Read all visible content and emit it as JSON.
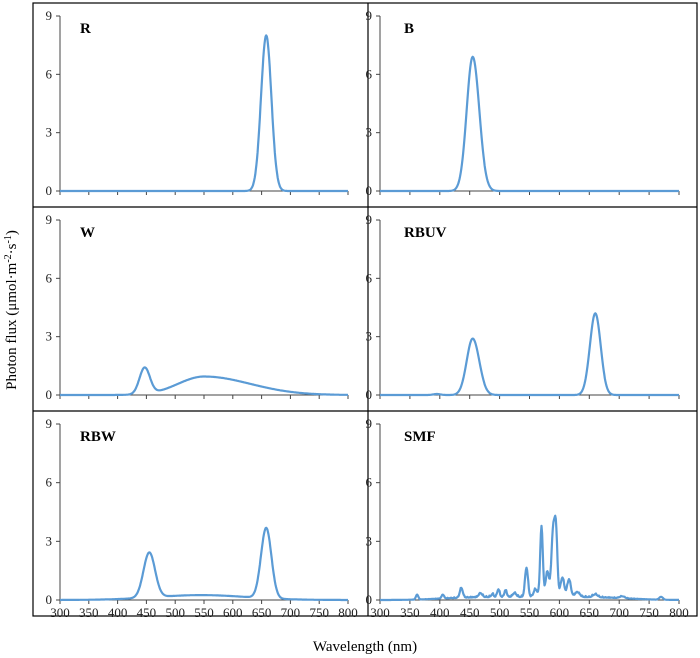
{
  "chart_data": {
    "type": "line",
    "title": "",
    "xlabel": "Wavelength  (nm)",
    "ylabel_parts": [
      "Photon flux  (μmol·m",
      "-2",
      "·s",
      "-1",
      ")"
    ],
    "xlim": [
      300,
      800
    ],
    "ylim": [
      0,
      9
    ],
    "xticks": [
      "300",
      "350",
      "400",
      "450",
      "500",
      "550",
      "600",
      "650",
      "700",
      "750",
      "800"
    ],
    "yticks": [
      "0",
      "3",
      "6",
      "9"
    ],
    "line_color": "#5b9bd5",
    "panels": [
      {
        "label": "R",
        "peaks": [
          [
            658,
            8.0,
            9,
            9
          ]
        ],
        "baseline": 0.0,
        "noise": 0
      },
      {
        "label": "B",
        "peaks": [
          [
            455,
            6.9,
            10,
            11
          ]
        ],
        "baseline": 0.0,
        "noise": 0
      },
      {
        "label": "W",
        "peaks": [
          [
            447,
            1.35,
            9,
            9
          ],
          [
            550,
            0.95,
            45,
            80
          ]
        ],
        "baseline": 0.0,
        "noise": 0
      },
      {
        "label": "RBUV",
        "peaks": [
          [
            395,
            0.05,
            6,
            6
          ],
          [
            455,
            2.9,
            10,
            11
          ],
          [
            660,
            4.2,
            9,
            9
          ]
        ],
        "baseline": 0.0,
        "noise": 0
      },
      {
        "label": "RBW",
        "peaks": [
          [
            455,
            2.3,
            10,
            10
          ],
          [
            545,
            0.25,
            80,
            80
          ],
          [
            658,
            3.6,
            9,
            9
          ]
        ],
        "baseline": 0.0,
        "noise": 0
      },
      {
        "label": "SMF",
        "peaks": [
          [
            362,
            0.25,
            2,
            2
          ],
          [
            405,
            0.2,
            2,
            2
          ],
          [
            436,
            0.5,
            2.5,
            2.5
          ],
          [
            468,
            0.2,
            3,
            3
          ],
          [
            488,
            0.15,
            2,
            2
          ],
          [
            498,
            0.4,
            2,
            2
          ],
          [
            510,
            0.35,
            2,
            2
          ],
          [
            525,
            0.2,
            3,
            3
          ],
          [
            545,
            1.5,
            2.5,
            2.5
          ],
          [
            560,
            0.4,
            3,
            3
          ],
          [
            570,
            3.6,
            2.2,
            2.2
          ],
          [
            580,
            1.3,
            3,
            3
          ],
          [
            589,
            3.0,
            2.5,
            2.5
          ],
          [
            594,
            3.6,
            2.5,
            2.5
          ],
          [
            605,
            1.0,
            3,
            3
          ],
          [
            616,
            0.9,
            3,
            3
          ],
          [
            630,
            0.25,
            4,
            4
          ],
          [
            660,
            0.15,
            4,
            4
          ],
          [
            705,
            0.1,
            4,
            4
          ],
          [
            770,
            0.15,
            3,
            3
          ]
        ],
        "baseline": 0.15,
        "noise": 0.08
      }
    ]
  }
}
